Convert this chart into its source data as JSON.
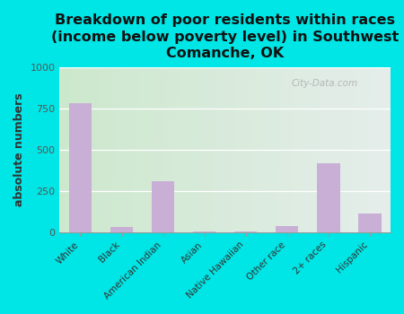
{
  "title": "Breakdown of poor residents within races\n(income below poverty level) in Southwest\nComanche, OK",
  "categories": [
    "White",
    "Black",
    "American Indian",
    "Asian",
    "Native Hawaiian",
    "Other race",
    "2+ races",
    "Hispanic"
  ],
  "values": [
    785,
    28,
    310,
    4,
    4,
    38,
    420,
    110
  ],
  "bar_color": "#c9aed6",
  "ylabel": "absolute numbers",
  "ylim": [
    0,
    1000
  ],
  "yticks": [
    0,
    250,
    500,
    750,
    1000
  ],
  "background_color": "#00e5e5",
  "plot_bg_color_topleft": "#cce8cc",
  "plot_bg_color_right": "#f0f0f8",
  "watermark": "City-Data.com",
  "title_fontsize": 11.5,
  "ylabel_fontsize": 9,
  "bar_width": 0.55,
  "grid_color": "#ffffff"
}
